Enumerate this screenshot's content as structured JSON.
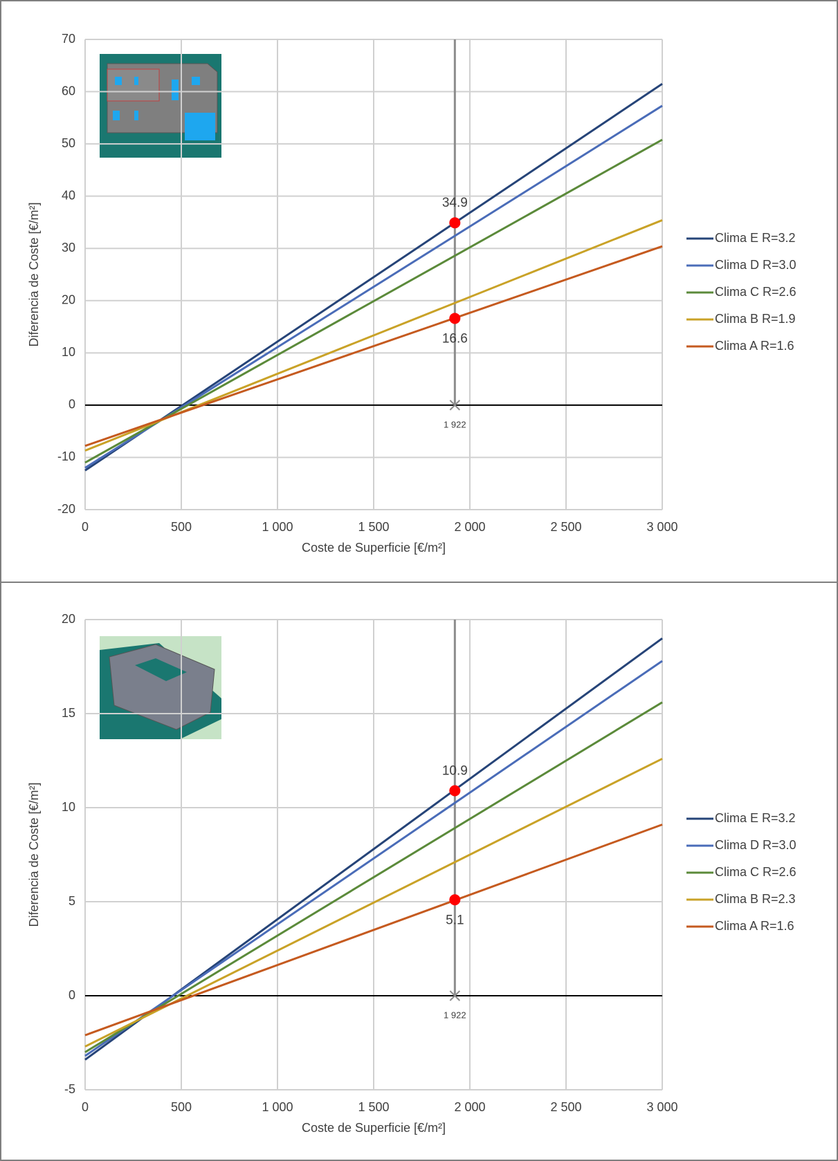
{
  "chart_data": [
    {
      "type": "line",
      "xlabel": "Coste de Superficie [€/m²]",
      "ylabel": "Diferencia de Coste [€/m²]",
      "x": [
        0,
        3000
      ],
      "series": [
        {
          "name": "Clima E R=3.2",
          "color": "#264478",
          "values": [
            -12.5,
            61.5
          ]
        },
        {
          "name": "Clima D R=3.0",
          "color": "#4a6cb8",
          "values": [
            -12,
            57.3
          ]
        },
        {
          "name": "Clima C R=2.6",
          "color": "#5b8a3a",
          "values": [
            -11,
            50.8
          ]
        },
        {
          "name": "Clima B R=1.9",
          "color": "#c9a227",
          "values": [
            -8.7,
            35.4
          ]
        },
        {
          "name": "Clima A R=1.6",
          "color": "#c55a1f",
          "values": [
            -7.8,
            30.4
          ]
        }
      ],
      "points": {
        "x": [
          1922,
          1922
        ],
        "values": [
          34.9,
          16.6
        ],
        "color": "#ff0000"
      },
      "reference": {
        "x": {
          "value": 1922,
          "label": "1 922"
        },
        "y": 0
      },
      "xlim": [
        0,
        3000
      ],
      "xticks": [
        0,
        500,
        {
          "value": 1000,
          "label": "1 000"
        },
        {
          "value": 1500,
          "label": "1 500"
        },
        {
          "value": 2000,
          "label": "2 000"
        },
        {
          "value": 2500,
          "label": "2 500"
        },
        {
          "value": 3000,
          "label": "3 000"
        }
      ],
      "ylim": [
        -20,
        70
      ],
      "yticks": [
        -20,
        -10,
        0,
        10,
        20,
        30,
        40,
        50,
        60,
        70
      ],
      "grid": true,
      "legend": "right"
    },
    {
      "type": "line",
      "xlabel": "Coste de Superficie [€/m²]",
      "ylabel": "Diferencia de Coste [€/m²]",
      "x": [
        0,
        3000
      ],
      "series": [
        {
          "name": "Clima E R=3.2",
          "color": "#264478",
          "values": [
            -3.4,
            19.0
          ]
        },
        {
          "name": "Clima D R=3.0",
          "color": "#4a6cb8",
          "values": [
            -3.2,
            17.8
          ]
        },
        {
          "name": "Clima C R=2.6",
          "color": "#5b8a3a",
          "values": [
            -3.0,
            15.6
          ]
        },
        {
          "name": "Clima B R=2.3",
          "color": "#c9a227",
          "values": [
            -2.7,
            12.6
          ]
        },
        {
          "name": "Clima A R=1.6",
          "color": "#c55a1f",
          "values": [
            -2.1,
            9.1
          ]
        }
      ],
      "points": {
        "x": [
          1922,
          1922
        ],
        "values": [
          10.9,
          5.1
        ],
        "color": "#ff0000"
      },
      "reference": {
        "x": {
          "value": 1922,
          "label": "1 922"
        },
        "y": 0
      },
      "xlim": [
        0,
        3000
      ],
      "xticks": [
        0,
        500,
        {
          "value": 1000,
          "label": "1 000"
        },
        {
          "value": 1500,
          "label": "1 500"
        },
        {
          "value": 2000,
          "label": "2 000"
        },
        {
          "value": 2500,
          "label": "2 500"
        },
        {
          "value": 3000,
          "label": "3 000"
        }
      ],
      "ylim": [
        -5,
        20
      ],
      "yticks": [
        -5,
        0,
        5,
        10,
        15,
        20
      ],
      "grid": true,
      "legend": "right"
    }
  ]
}
